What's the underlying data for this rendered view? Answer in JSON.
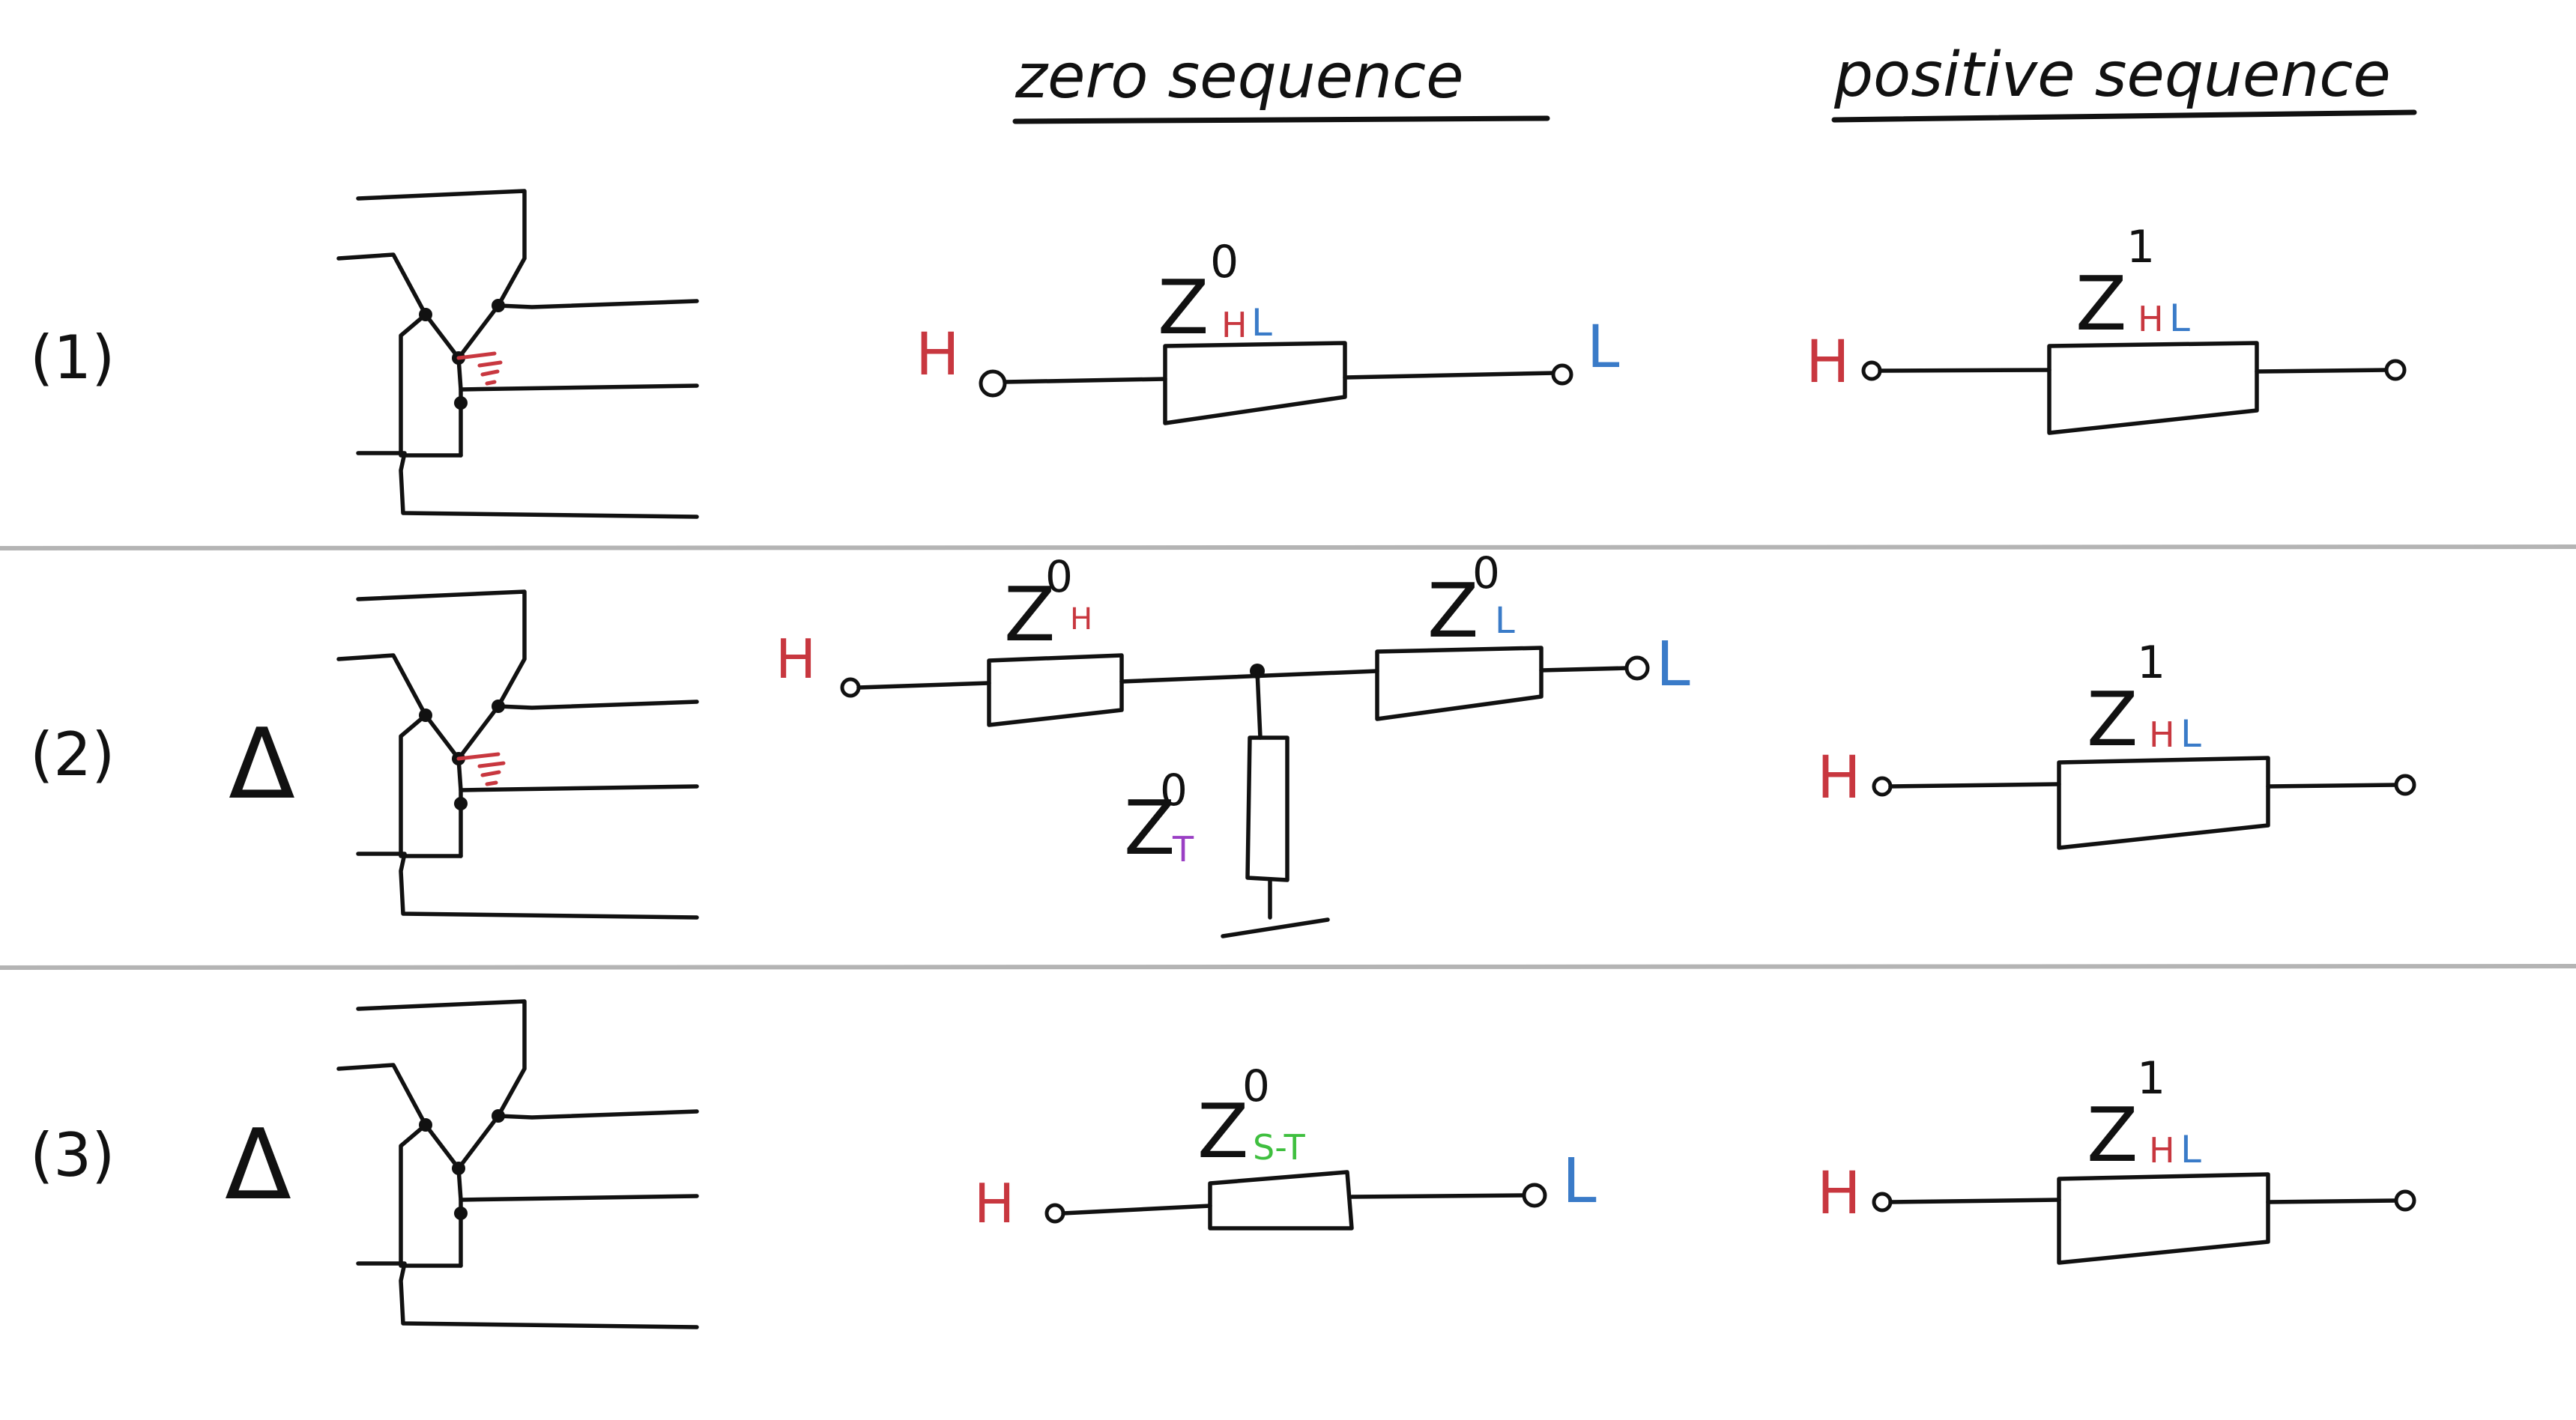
{
  "headers": {
    "zero": "zero sequence",
    "positive": "positive sequence"
  },
  "rows": [
    {
      "label": "(1)",
      "delta_symbol": "",
      "zero": {
        "type": "series",
        "h": "H",
        "l": "L",
        "z_base": "Z",
        "z_sup": "0",
        "z_sub_h": "H",
        "z_sub_l": "L"
      },
      "positive": {
        "h": "H",
        "z_base": "Z",
        "z_sup": "1",
        "z_sub_h": "H",
        "z_sub_l": "L"
      }
    },
    {
      "label": "(2)",
      "delta_symbol": "Δ",
      "zero": {
        "type": "tee",
        "h": "H",
        "l": "L",
        "zh": {
          "base": "Z",
          "sup": "0",
          "sub": "H"
        },
        "zl": {
          "base": "Z",
          "sup": "0",
          "sub": "L"
        },
        "zt": {
          "base": "Z",
          "sup": "0",
          "sub": "T"
        }
      },
      "positive": {
        "h": "H",
        "z_base": "Z",
        "z_sup": "1",
        "z_sub_h": "H",
        "z_sub_l": "L"
      }
    },
    {
      "label": "(3)",
      "delta_symbol": "Δ",
      "zero": {
        "type": "series",
        "h": "H",
        "l": "L",
        "z_base": "Z",
        "z_sup": "0",
        "z_sub": "S-T"
      },
      "positive": {
        "h": "H",
        "z_base": "Z",
        "z_sup": "1",
        "z_sub_h": "H",
        "z_sub_l": "L"
      }
    }
  ],
  "colors": {
    "ink": "#111111",
    "h_red": "#c8373f",
    "l_blue": "#3a7bc8",
    "t_purple": "#9a3fc4",
    "st_green": "#3fbf3f",
    "separator": "#b4b4b4"
  }
}
